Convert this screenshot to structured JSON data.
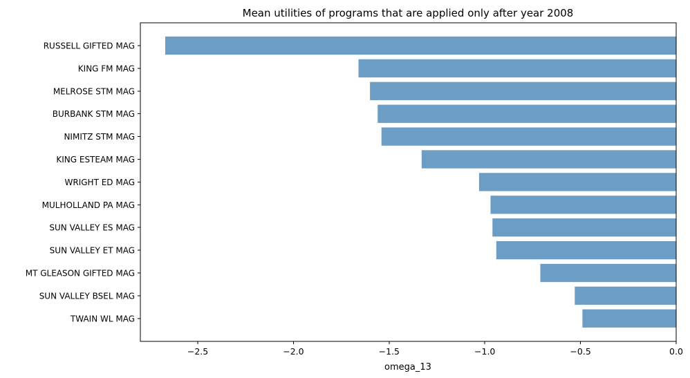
{
  "chart_data": {
    "type": "bar",
    "orientation": "horizontal",
    "title": "Mean utilities of programs that are applied only after year 2008",
    "xlabel": "omega_13",
    "ylabel": "",
    "xlim": [
      -2.8,
      0.0
    ],
    "xticks": [
      -2.5,
      -2.0,
      -1.5,
      -1.0,
      -0.5,
      0.0
    ],
    "xtick_labels": [
      "−2.5",
      "−2.0",
      "−1.5",
      "−1.0",
      "−0.5",
      "0.0"
    ],
    "categories": [
      "RUSSELL GIFTED MAG",
      "KING FM MAG",
      "MELROSE STM MAG",
      "BURBANK STM MAG",
      "NIMITZ STM MAG",
      "KING ESTEAM MAG",
      "WRIGHT ED MAG",
      "MULHOLLAND PA MAG",
      "SUN VALLEY ES MAG",
      "SUN VALLEY ET MAG",
      "MT GLEASON GIFTED MAG",
      "SUN VALLEY BSEL MAG",
      "TWAIN WL MAG"
    ],
    "values": [
      -2.67,
      -1.66,
      -1.6,
      -1.56,
      -1.54,
      -1.33,
      -1.03,
      -0.97,
      -0.96,
      -0.94,
      -0.71,
      -0.53,
      -0.49
    ],
    "bar_color": "#6b9dc5",
    "grid": false,
    "legend": "none"
  }
}
